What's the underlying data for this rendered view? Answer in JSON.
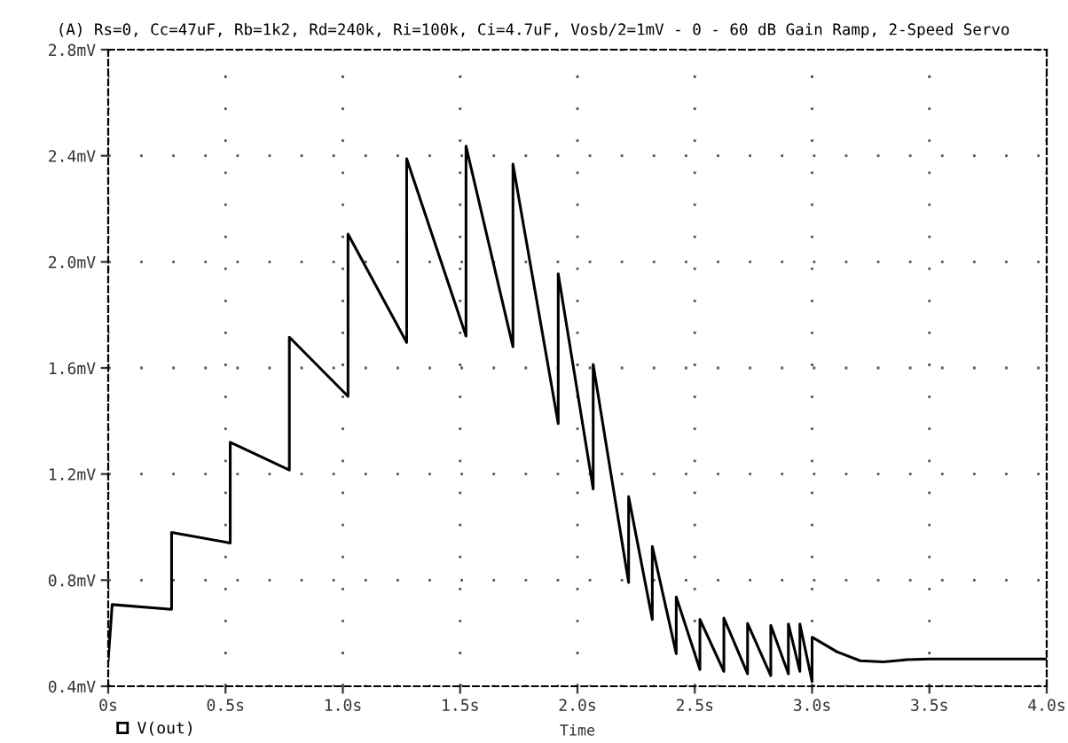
{
  "chart_data": {
    "type": "line",
    "title": "(A) Rs=0, Cc=47uF, Rb=1k2, Rd=240k, Ri=100k, Ci=4.7uF, Vosb/2=1mV - 0 - 60 dB Gain Ramp, 2-Speed Servo",
    "xlabel": "Time",
    "series": [
      {
        "name": "V(out)",
        "color": "#000000",
        "x": [
          0.0,
          0.017,
          0.27,
          0.27,
          0.52,
          0.52,
          0.772,
          0.772,
          1.022,
          1.022,
          1.272,
          1.272,
          1.525,
          1.525,
          1.725,
          1.725,
          1.77,
          1.918,
          1.918,
          2.067,
          2.067,
          2.218,
          2.218,
          2.319,
          2.319,
          2.421,
          2.421,
          2.522,
          2.522,
          2.624,
          2.624,
          2.725,
          2.725,
          2.824,
          2.824,
          2.899,
          2.899,
          2.948,
          2.948,
          3.0,
          3.0,
          3.106,
          3.205,
          3.304,
          3.403,
          3.502,
          3.998
        ],
        "values": [
          0.5,
          0.708,
          0.69,
          0.98,
          0.94,
          1.32,
          1.215,
          1.716,
          1.493,
          2.105,
          1.696,
          2.389,
          1.72,
          2.436,
          1.68,
          2.369,
          2.139,
          1.39,
          1.955,
          1.144,
          1.613,
          0.791,
          1.115,
          0.652,
          0.927,
          0.523,
          0.737,
          0.463,
          0.652,
          0.456,
          0.657,
          0.447,
          0.637,
          0.44,
          0.63,
          0.447,
          0.635,
          0.456,
          0.635,
          0.418,
          0.585,
          0.53,
          0.496,
          0.492,
          0.5,
          0.503,
          0.503
        ]
      }
    ],
    "xlim": [
      0,
      4.0
    ],
    "ylim": [
      0.4,
      2.8
    ],
    "xticks": [
      {
        "value": 0,
        "label": "0s"
      },
      {
        "value": 0.5,
        "label": "0.5s"
      },
      {
        "value": 1.0,
        "label": "1.0s"
      },
      {
        "value": 1.5,
        "label": "1.5s"
      },
      {
        "value": 2.0,
        "label": "2.0s"
      },
      {
        "value": 2.5,
        "label": "2.5s"
      },
      {
        "value": 3.0,
        "label": "3.0s"
      },
      {
        "value": 3.5,
        "label": "3.5s"
      },
      {
        "value": 4.0,
        "label": "4.0s"
      }
    ],
    "yticks": [
      {
        "value": 0.4,
        "label": "0.4mV"
      },
      {
        "value": 0.8,
        "label": "0.8mV"
      },
      {
        "value": 1.2,
        "label": "1.2mV"
      },
      {
        "value": 1.6,
        "label": "1.6mV"
      },
      {
        "value": 2.0,
        "label": "2.0mV"
      },
      {
        "value": 2.4,
        "label": "2.4mV"
      },
      {
        "value": 2.8,
        "label": "2.8mV"
      }
    ],
    "grid": true,
    "legend": "bottom left",
    "line_style": "solid"
  }
}
